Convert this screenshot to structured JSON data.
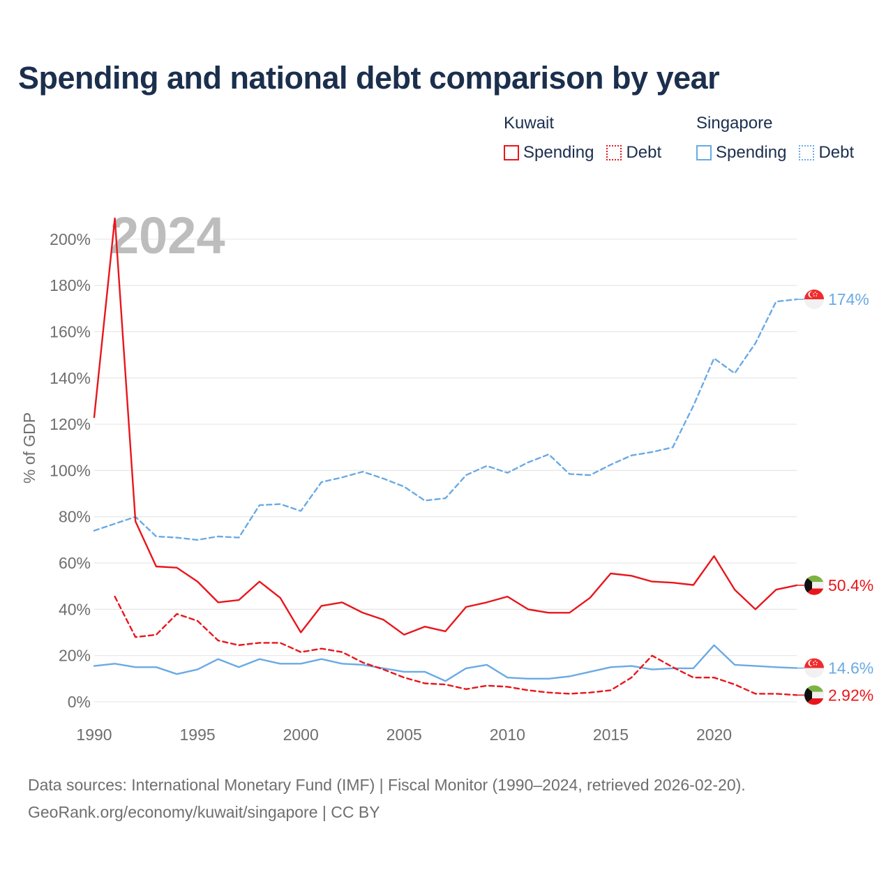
{
  "title": "Spending and national debt comparison by year",
  "legend": {
    "groups": [
      {
        "title": "Kuwait",
        "color": "#e8161c",
        "items": [
          "Spending",
          "Debt"
        ]
      },
      {
        "title": "Singapore",
        "color": "#6aaae4",
        "items": [
          "Spending",
          "Debt"
        ]
      }
    ]
  },
  "sources": {
    "line1": "Data sources: International Monetary Fund (IMF) | Fiscal Monitor (1990–2024, retrieved 2026-02-20).",
    "line2": "GeoRank.org/economy/kuwait/singapore | CC BY"
  },
  "chart_data": {
    "type": "line",
    "year_label": "2024",
    "ylabel": "% of GDP",
    "ylim": [
      0,
      210
    ],
    "xlim": [
      1990,
      2024
    ],
    "y_ticks": [
      0,
      20,
      40,
      60,
      80,
      100,
      120,
      140,
      160,
      180,
      200
    ],
    "y_tick_labels": [
      "0%",
      "20%",
      "40%",
      "60%",
      "80%",
      "100%",
      "120%",
      "140%",
      "160%",
      "180%",
      "200%"
    ],
    "x_ticks": [
      1990,
      1995,
      2000,
      2005,
      2010,
      2015,
      2020
    ],
    "x_tick_labels": [
      "1990",
      "1995",
      "2000",
      "2005",
      "2010",
      "2015",
      "2020"
    ],
    "series": [
      {
        "name": "Singapore Debt",
        "color": "#6aaae4",
        "dash": true,
        "start_year": 1990,
        "values": [
          74,
          77,
          80,
          71.5,
          71,
          70,
          71.5,
          71,
          85,
          85.5,
          82.5,
          95,
          97,
          99.5,
          96.5,
          93,
          87,
          88,
          98,
          102,
          99,
          103.5,
          107,
          98.5,
          98,
          102.5,
          106.5,
          108,
          110,
          128,
          148.5,
          142,
          155,
          173,
          174
        ],
        "end_label": "174%",
        "flag": "singapore"
      },
      {
        "name": "Kuwait Spending",
        "color": "#e8161c",
        "dash": false,
        "start_year": 1990,
        "values": [
          123,
          209,
          78,
          58.5,
          58,
          52,
          43,
          44,
          52,
          45,
          30,
          41.5,
          43,
          38.5,
          35.5,
          29,
          32.5,
          30.5,
          41,
          43,
          45.5,
          40,
          38.5,
          38.5,
          45,
          55.5,
          54.5,
          52,
          51.5,
          50.5,
          63,
          48.5,
          40,
          48.5,
          50.4
        ],
        "end_label": "50.4%",
        "flag": "kuwait"
      },
      {
        "name": "Singapore Spending",
        "color": "#6aaae4",
        "dash": false,
        "start_year": 1990,
        "values": [
          15.5,
          16.5,
          15,
          15,
          12,
          14,
          18.5,
          15,
          18.5,
          16.5,
          16.5,
          18.5,
          16.5,
          16,
          14.5,
          13,
          13,
          9,
          14.5,
          16,
          10.5,
          10,
          10,
          11,
          13,
          15,
          15.5,
          14,
          14.5,
          14.5,
          24.5,
          16,
          15.5,
          15,
          14.6
        ],
        "end_label": "14.6%",
        "flag": "singapore"
      },
      {
        "name": "Kuwait Debt",
        "color": "#e8161c",
        "dash": true,
        "start_year": 1991,
        "values": [
          45.5,
          28,
          29,
          38,
          35,
          26.5,
          24.5,
          25.5,
          25.5,
          21.5,
          23,
          21.5,
          17,
          14,
          10.5,
          8,
          7.5,
          5.5,
          7,
          6.5,
          5,
          4,
          3.5,
          4,
          5,
          10.5,
          20,
          15,
          10.5,
          10.5,
          7.5,
          3.5,
          3.5,
          2.92
        ],
        "end_label": "2.92%",
        "flag": "kuwait"
      }
    ]
  }
}
